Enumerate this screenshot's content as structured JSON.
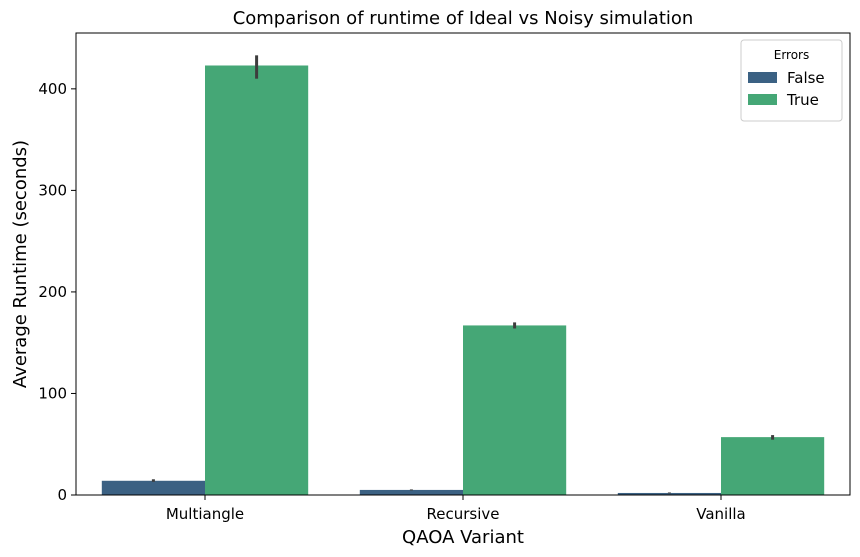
{
  "chart_data": {
    "type": "bar",
    "title": "Comparison of runtime of Ideal vs Noisy simulation",
    "xlabel": "QAOA Variant",
    "ylabel": "Average Runtime (seconds)",
    "categories": [
      "Multiangle",
      "Recursive",
      "Vanilla"
    ],
    "ylim": [
      0,
      455
    ],
    "yticks": [
      0,
      100,
      200,
      300,
      400
    ],
    "grid": false,
    "legend": {
      "title": "Errors",
      "placement": "top-right"
    },
    "series": [
      {
        "name": "False",
        "color": "#3b6183",
        "values": [
          14,
          5,
          2
        ],
        "error_low": [
          13,
          4.5,
          1.5
        ],
        "error_high": [
          15.5,
          5.5,
          2.5
        ]
      },
      {
        "name": "True",
        "color": "#45a776",
        "values": [
          423,
          167,
          57
        ],
        "error_low": [
          410,
          164,
          54.5
        ],
        "error_high": [
          433,
          170,
          59
        ]
      }
    ]
  }
}
